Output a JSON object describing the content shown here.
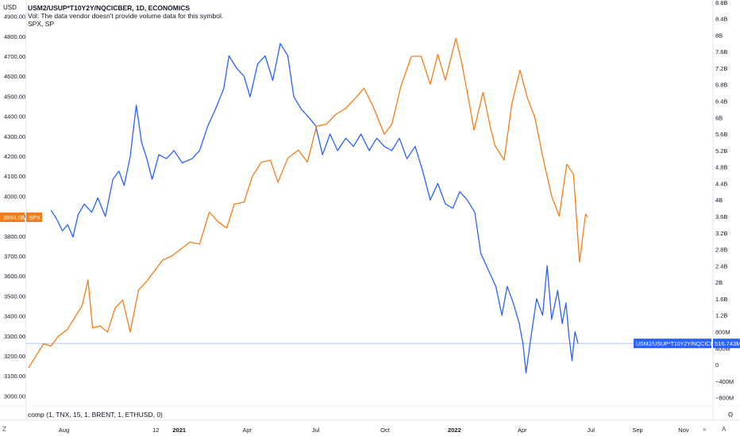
{
  "legend": {
    "title": "USM2/USUP*T10Y2Y/NQCICBER, 1D, ECONOMICS",
    "vol_note": "Vol: The data vendor doesn't provide volume data for this symbol.",
    "series2": "SPX, SP"
  },
  "formula": "comp (1, TNX, 15, 1, BRENT, 1, ETHUSD, 0)",
  "left_axis_unit": "USD",
  "buttons": {
    "zoom": "Z",
    "auto": "A",
    "nav": "»",
    "settings_icon": "gear-icon"
  },
  "colors": {
    "comp": "#2962ff",
    "spx": "#f57c17",
    "crosshair": "#b2c3f4"
  },
  "chart_data": {
    "type": "line",
    "x_ticks": [
      {
        "label": "Aug",
        "date": "2020-08-01",
        "bold": false
      },
      {
        "label": "12",
        "date": "2020-12-01",
        "bold": false
      },
      {
        "label": "2021",
        "date": "2021-01-01",
        "bold": true
      },
      {
        "label": "Apr",
        "date": "2021-04-01",
        "bold": false
      },
      {
        "label": "Jul",
        "date": "2021-07-01",
        "bold": false
      },
      {
        "label": "Oct",
        "date": "2021-10-01",
        "bold": false
      },
      {
        "label": "2022",
        "date": "2022-01-01",
        "bold": true
      },
      {
        "label": "Apr",
        "date": "2022-04-01",
        "bold": false
      },
      {
        "label": "Jul",
        "date": "2022-07-01",
        "bold": false
      },
      {
        "label": "Sep",
        "date": "2022-09-01",
        "bold": false
      },
      {
        "label": "Nov",
        "date": "2022-11-01",
        "bold": false
      }
    ],
    "x_range": [
      "2020-06-12",
      "2022-12-10"
    ],
    "left_axis": {
      "ylim": [
        2950,
        4950
      ],
      "ticks": [
        "4900.00",
        "4800.00",
        "4700.00",
        "4600.00",
        "4500.00",
        "4400.00",
        "4300.00",
        "4200.00",
        "4100.00",
        "4000.00",
        "3900.00",
        "3800.00",
        "3700.00",
        "3600.00",
        "3500.00",
        "3400.00",
        "3300.00",
        "3200.00",
        "3100.00",
        "3000.00"
      ],
      "tick_values": [
        4900,
        4800,
        4700,
        4600,
        4500,
        4400,
        4300,
        4200,
        4100,
        4000,
        3900,
        3800,
        3700,
        3600,
        3500,
        3400,
        3300,
        3200,
        3100,
        3000
      ]
    },
    "right_axis": {
      "ylim": [
        -1000,
        8700
      ],
      "ticks": [
        "8.8B",
        "8.4B",
        "8B",
        "7.6B",
        "7.2B",
        "6.8B",
        "6.4B",
        "6B",
        "5.6B",
        "5.2B",
        "4.8B",
        "4.4B",
        "4B",
        "3.6B",
        "3.2B",
        "2.8B",
        "2.4B",
        "2B",
        "1.6B",
        "1.2B",
        "800M",
        "400M",
        "0",
        "−400M",
        "−800M"
      ],
      "tick_values": [
        8800,
        8400,
        8000,
        7600,
        7200,
        6800,
        6400,
        6000,
        5600,
        5200,
        4800,
        4400,
        4000,
        3600,
        3200,
        2800,
        2400,
        2000,
        1600,
        1200,
        800,
        400,
        0,
        -400,
        -800
      ]
    },
    "series": [
      {
        "name": "USM2/USUP*T10Y2Y/NQCICBER",
        "axis": "right",
        "last_label": "516.743M",
        "last_value": 516.743,
        "points": [
          [
            "2020-07-15",
            3750
          ],
          [
            "2020-07-22",
            3550
          ],
          [
            "2020-07-30",
            3250
          ],
          [
            "2020-08-06",
            3400
          ],
          [
            "2020-08-13",
            3100
          ],
          [
            "2020-08-20",
            3650
          ],
          [
            "2020-08-28",
            3900
          ],
          [
            "2020-09-07",
            3700
          ],
          [
            "2020-09-15",
            4050
          ],
          [
            "2020-09-25",
            3600
          ],
          [
            "2020-10-05",
            4500
          ],
          [
            "2020-10-13",
            4700
          ],
          [
            "2020-10-20",
            4350
          ],
          [
            "2020-10-28",
            5050
          ],
          [
            "2020-11-05",
            6300
          ],
          [
            "2020-11-12",
            5400
          ],
          [
            "2020-11-19",
            5000
          ],
          [
            "2020-11-26",
            4500
          ],
          [
            "2020-12-05",
            5100
          ],
          [
            "2020-12-15",
            5000
          ],
          [
            "2020-12-25",
            5200
          ],
          [
            "2021-01-05",
            4900
          ],
          [
            "2021-01-18",
            5000
          ],
          [
            "2021-01-28",
            5200
          ],
          [
            "2021-02-08",
            5800
          ],
          [
            "2021-02-18",
            6200
          ],
          [
            "2021-03-01",
            6700
          ],
          [
            "2021-03-08",
            7500
          ],
          [
            "2021-03-18",
            7200
          ],
          [
            "2021-03-28",
            7000
          ],
          [
            "2021-04-05",
            6500
          ],
          [
            "2021-04-15",
            7300
          ],
          [
            "2021-04-25",
            7500
          ],
          [
            "2021-05-05",
            6900
          ],
          [
            "2021-05-15",
            7800
          ],
          [
            "2021-05-25",
            7500
          ],
          [
            "2021-06-02",
            6500
          ],
          [
            "2021-06-12",
            6200
          ],
          [
            "2021-06-22",
            6000
          ],
          [
            "2021-07-01",
            5800
          ],
          [
            "2021-07-10",
            5100
          ],
          [
            "2021-07-20",
            5600
          ],
          [
            "2021-07-30",
            5200
          ],
          [
            "2021-08-10",
            5500
          ],
          [
            "2021-08-20",
            5300
          ],
          [
            "2021-08-30",
            5600
          ],
          [
            "2021-09-10",
            5200
          ],
          [
            "2021-09-20",
            5500
          ],
          [
            "2021-09-30",
            5300
          ],
          [
            "2021-10-10",
            5200
          ],
          [
            "2021-10-20",
            5500
          ],
          [
            "2021-10-30",
            5000
          ],
          [
            "2021-11-10",
            5300
          ],
          [
            "2021-11-20",
            4700
          ],
          [
            "2021-11-30",
            4000
          ],
          [
            "2021-12-10",
            4400
          ],
          [
            "2021-12-20",
            3900
          ],
          [
            "2021-12-30",
            3800
          ],
          [
            "2022-01-08",
            4200
          ],
          [
            "2022-01-18",
            4000
          ],
          [
            "2022-01-28",
            3700
          ],
          [
            "2022-02-05",
            2700
          ],
          [
            "2022-02-15",
            2300
          ],
          [
            "2022-02-25",
            1900
          ],
          [
            "2022-03-05",
            1200
          ],
          [
            "2022-03-12",
            1900
          ],
          [
            "2022-03-20",
            1500
          ],
          [
            "2022-03-28",
            1000
          ],
          [
            "2022-04-02",
            500
          ],
          [
            "2022-04-06",
            -200
          ],
          [
            "2022-04-12",
            600
          ],
          [
            "2022-04-20",
            1600
          ],
          [
            "2022-04-28",
            1200
          ],
          [
            "2022-05-04",
            2400
          ],
          [
            "2022-05-10",
            1100
          ],
          [
            "2022-05-18",
            1800
          ],
          [
            "2022-05-24",
            1000
          ],
          [
            "2022-05-29",
            1500
          ],
          [
            "2022-06-02",
            700
          ],
          [
            "2022-06-06",
            100
          ],
          [
            "2022-06-10",
            800
          ],
          [
            "2022-06-14",
            516.743
          ]
        ]
      },
      {
        "name": "SPX",
        "axis": "left",
        "last_label": "3894.08",
        "last_value": 3894.08,
        "points": [
          [
            "2020-06-15",
            3140
          ],
          [
            "2020-06-25",
            3200
          ],
          [
            "2020-07-05",
            3260
          ],
          [
            "2020-07-15",
            3250
          ],
          [
            "2020-07-25",
            3300
          ],
          [
            "2020-08-05",
            3330
          ],
          [
            "2020-08-15",
            3390
          ],
          [
            "2020-08-25",
            3450
          ],
          [
            "2020-09-02",
            3580
          ],
          [
            "2020-09-08",
            3340
          ],
          [
            "2020-09-18",
            3350
          ],
          [
            "2020-09-28",
            3320
          ],
          [
            "2020-10-08",
            3440
          ],
          [
            "2020-10-18",
            3480
          ],
          [
            "2020-10-28",
            3320
          ],
          [
            "2020-11-08",
            3530
          ],
          [
            "2020-11-18",
            3570
          ],
          [
            "2020-11-28",
            3620
          ],
          [
            "2020-12-10",
            3680
          ],
          [
            "2020-12-22",
            3700
          ],
          [
            "2021-01-05",
            3740
          ],
          [
            "2021-01-15",
            3770
          ],
          [
            "2021-01-28",
            3760
          ],
          [
            "2021-02-10",
            3920
          ],
          [
            "2021-02-22",
            3870
          ],
          [
            "2021-03-05",
            3840
          ],
          [
            "2021-03-15",
            3960
          ],
          [
            "2021-03-28",
            3970
          ],
          [
            "2021-04-08",
            4100
          ],
          [
            "2021-04-20",
            4170
          ],
          [
            "2021-05-02",
            4180
          ],
          [
            "2021-05-12",
            4070
          ],
          [
            "2021-05-25",
            4190
          ],
          [
            "2021-06-08",
            4230
          ],
          [
            "2021-06-20",
            4170
          ],
          [
            "2021-07-02",
            4350
          ],
          [
            "2021-07-15",
            4360
          ],
          [
            "2021-07-28",
            4410
          ],
          [
            "2021-08-10",
            4440
          ],
          [
            "2021-08-25",
            4500
          ],
          [
            "2021-09-03",
            4540
          ],
          [
            "2021-09-15",
            4450
          ],
          [
            "2021-09-30",
            4310
          ],
          [
            "2021-10-10",
            4360
          ],
          [
            "2021-10-22",
            4550
          ],
          [
            "2021-11-05",
            4700
          ],
          [
            "2021-11-18",
            4700
          ],
          [
            "2021-11-30",
            4560
          ],
          [
            "2021-12-10",
            4710
          ],
          [
            "2021-12-20",
            4580
          ],
          [
            "2022-01-03",
            4790
          ],
          [
            "2022-01-10",
            4680
          ],
          [
            "2022-01-20",
            4480
          ],
          [
            "2022-01-27",
            4330
          ],
          [
            "2022-02-08",
            4520
          ],
          [
            "2022-02-18",
            4340
          ],
          [
            "2022-02-24",
            4250
          ],
          [
            "2022-03-08",
            4180
          ],
          [
            "2022-03-18",
            4460
          ],
          [
            "2022-03-29",
            4630
          ],
          [
            "2022-04-08",
            4490
          ],
          [
            "2022-04-18",
            4390
          ],
          [
            "2022-04-28",
            4200
          ],
          [
            "2022-05-10",
            4000
          ],
          [
            "2022-05-20",
            3900
          ],
          [
            "2022-05-30",
            4160
          ],
          [
            "2022-06-08",
            4110
          ],
          [
            "2022-06-16",
            3670
          ],
          [
            "2022-06-24",
            3910
          ],
          [
            "2022-06-27",
            3894.08
          ]
        ]
      }
    ],
    "crosshair": {
      "axis": "right",
      "value": 516.743
    }
  }
}
